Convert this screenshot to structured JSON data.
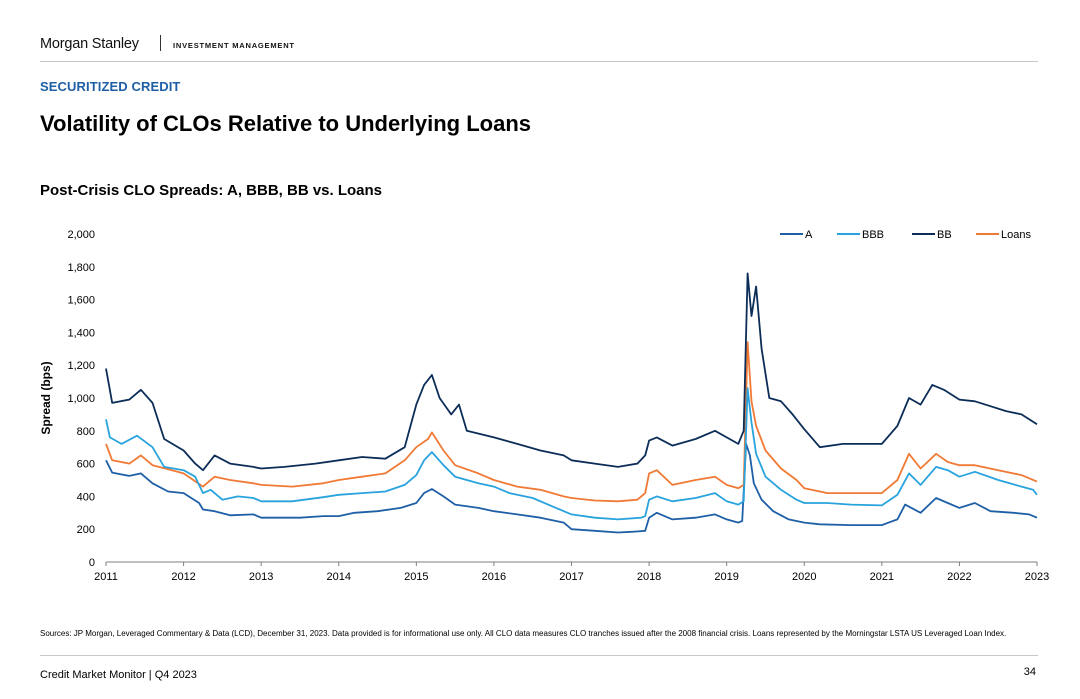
{
  "header": {
    "brand": "Morgan Stanley",
    "sub_brand": "INVESTMENT MANAGEMENT"
  },
  "section_label": "SECURITIZED CREDIT",
  "page_title": "Volatility of CLOs Relative to Underlying Loans",
  "chart_title": "Post-Crisis CLO Spreads: A, BBB, BB vs. Loans",
  "footer": {
    "sources": "Sources: JP Morgan, Leveraged Commentary & Data (LCD), December 31, 2023. Data provided is for informational use only. All CLO data measures CLO tranches issued after the 2008 financial crisis. Loans represented by the Morningstar LSTA US Leveraged Loan Index.",
    "left": "Credit Market Monitor | Q4 2023",
    "page": "34"
  },
  "chart_data": {
    "type": "line",
    "title": "Post-Crisis CLO Spreads: A, BBB, BB vs. Loans",
    "xlabel": "",
    "ylabel": "Spread (bps)",
    "xlim": [
      2011,
      2023
    ],
    "ylim": [
      0,
      2000
    ],
    "y_ticks": [
      0,
      200,
      400,
      600,
      800,
      1000,
      1200,
      1400,
      1600,
      1800,
      2000
    ],
    "y_tick_labels": [
      "0",
      "200",
      "400",
      "600",
      "800",
      "1,000",
      "1,200",
      "1,400",
      "1,600",
      "1,800",
      "2,000"
    ],
    "x_ticks": [
      2011,
      2012,
      2013,
      2014,
      2015,
      2016,
      2017,
      2018,
      2019,
      2020,
      2021,
      2022,
      2023
    ],
    "x_tick_labels": [
      "2011",
      "2012",
      "2013",
      "2014",
      "2015",
      "2016",
      "2017",
      "2018",
      "2019",
      "2020",
      "2021",
      "2022",
      "2023"
    ],
    "grid": false,
    "legend_position": "top-right",
    "series": [
      {
        "name": "A",
        "color": "#1f5fa6",
        "points": [
          [
            2011.0,
            620
          ],
          [
            2011.08,
            545
          ],
          [
            2011.3,
            525
          ],
          [
            2011.45,
            540
          ],
          [
            2011.6,
            480
          ],
          [
            2011.8,
            430
          ],
          [
            2012.0,
            420
          ],
          [
            2012.2,
            360
          ],
          [
            2012.25,
            320
          ],
          [
            2012.4,
            310
          ],
          [
            2012.6,
            285
          ],
          [
            2012.9,
            290
          ],
          [
            2013.0,
            270
          ],
          [
            2013.5,
            270
          ],
          [
            2013.8,
            280
          ],
          [
            2014.0,
            280
          ],
          [
            2014.2,
            300
          ],
          [
            2014.5,
            310
          ],
          [
            2014.8,
            330
          ],
          [
            2015.0,
            360
          ],
          [
            2015.1,
            420
          ],
          [
            2015.2,
            445
          ],
          [
            2015.35,
            400
          ],
          [
            2015.5,
            350
          ],
          [
            2015.8,
            330
          ],
          [
            2016.0,
            310
          ],
          [
            2016.3,
            290
          ],
          [
            2016.6,
            270
          ],
          [
            2016.9,
            240
          ],
          [
            2017.0,
            200
          ],
          [
            2017.3,
            190
          ],
          [
            2017.6,
            180
          ],
          [
            2017.8,
            185
          ],
          [
            2017.95,
            190
          ],
          [
            2018.0,
            270
          ],
          [
            2018.1,
            300
          ],
          [
            2018.3,
            260
          ],
          [
            2018.6,
            270
          ],
          [
            2018.85,
            290
          ],
          [
            2019.0,
            260
          ],
          [
            2019.15,
            240
          ],
          [
            2019.2,
            250
          ],
          [
            2019.25,
            720
          ],
          [
            2019.3,
            650
          ],
          [
            2019.35,
            480
          ],
          [
            2019.45,
            380
          ],
          [
            2019.6,
            310
          ],
          [
            2019.8,
            260
          ],
          [
            2020.0,
            240
          ],
          [
            2020.2,
            230
          ],
          [
            2020.6,
            225
          ],
          [
            2021.0,
            225
          ],
          [
            2021.2,
            260
          ],
          [
            2021.3,
            350
          ],
          [
            2021.5,
            300
          ],
          [
            2021.7,
            390
          ],
          [
            2021.85,
            360
          ],
          [
            2022.0,
            330
          ],
          [
            2022.2,
            360
          ],
          [
            2022.4,
            310
          ],
          [
            2022.7,
            300
          ],
          [
            2022.9,
            290
          ],
          [
            2023.0,
            270
          ]
        ]
      },
      {
        "name": "BBB",
        "color": "#29a3dd",
        "points": [
          [
            2011.0,
            870
          ],
          [
            2011.05,
            760
          ],
          [
            2011.2,
            720
          ],
          [
            2011.4,
            770
          ],
          [
            2011.6,
            700
          ],
          [
            2011.75,
            580
          ],
          [
            2012.0,
            560
          ],
          [
            2012.15,
            520
          ],
          [
            2012.25,
            420
          ],
          [
            2012.35,
            440
          ],
          [
            2012.5,
            380
          ],
          [
            2012.7,
            400
          ],
          [
            2012.9,
            390
          ],
          [
            2013.0,
            370
          ],
          [
            2013.4,
            370
          ],
          [
            2013.8,
            395
          ],
          [
            2014.0,
            410
          ],
          [
            2014.3,
            420
          ],
          [
            2014.6,
            430
          ],
          [
            2014.85,
            470
          ],
          [
            2015.0,
            530
          ],
          [
            2015.1,
            620
          ],
          [
            2015.2,
            670
          ],
          [
            2015.35,
            590
          ],
          [
            2015.5,
            520
          ],
          [
            2015.8,
            480
          ],
          [
            2016.0,
            460
          ],
          [
            2016.2,
            420
          ],
          [
            2016.5,
            390
          ],
          [
            2016.8,
            330
          ],
          [
            2017.0,
            290
          ],
          [
            2017.3,
            270
          ],
          [
            2017.6,
            260
          ],
          [
            2017.9,
            270
          ],
          [
            2017.95,
            280
          ],
          [
            2018.0,
            380
          ],
          [
            2018.1,
            400
          ],
          [
            2018.3,
            370
          ],
          [
            2018.6,
            390
          ],
          [
            2018.85,
            420
          ],
          [
            2019.0,
            370
          ],
          [
            2019.15,
            350
          ],
          [
            2019.22,
            370
          ],
          [
            2019.27,
            1060
          ],
          [
            2019.32,
            850
          ],
          [
            2019.38,
            660
          ],
          [
            2019.5,
            520
          ],
          [
            2019.7,
            440
          ],
          [
            2019.9,
            380
          ],
          [
            2020.0,
            360
          ],
          [
            2020.3,
            360
          ],
          [
            2020.6,
            350
          ],
          [
            2021.0,
            345
          ],
          [
            2021.2,
            410
          ],
          [
            2021.35,
            540
          ],
          [
            2021.5,
            470
          ],
          [
            2021.7,
            580
          ],
          [
            2021.85,
            560
          ],
          [
            2022.0,
            520
          ],
          [
            2022.2,
            550
          ],
          [
            2022.5,
            500
          ],
          [
            2022.8,
            460
          ],
          [
            2022.95,
            440
          ],
          [
            2023.0,
            410
          ]
        ]
      },
      {
        "name": "BB",
        "color": "#0b2d57",
        "points": [
          [
            2011.0,
            1180
          ],
          [
            2011.08,
            970
          ],
          [
            2011.3,
            990
          ],
          [
            2011.45,
            1050
          ],
          [
            2011.6,
            970
          ],
          [
            2011.75,
            750
          ],
          [
            2012.0,
            680
          ],
          [
            2012.15,
            600
          ],
          [
            2012.25,
            560
          ],
          [
            2012.4,
            650
          ],
          [
            2012.6,
            600
          ],
          [
            2012.9,
            580
          ],
          [
            2013.0,
            570
          ],
          [
            2013.3,
            580
          ],
          [
            2013.7,
            600
          ],
          [
            2014.0,
            620
          ],
          [
            2014.3,
            640
          ],
          [
            2014.6,
            630
          ],
          [
            2014.85,
            700
          ],
          [
            2015.0,
            960
          ],
          [
            2015.1,
            1080
          ],
          [
            2015.2,
            1140
          ],
          [
            2015.3,
            1000
          ],
          [
            2015.45,
            900
          ],
          [
            2015.55,
            960
          ],
          [
            2015.65,
            800
          ],
          [
            2016.0,
            760
          ],
          [
            2016.3,
            720
          ],
          [
            2016.6,
            680
          ],
          [
            2016.9,
            650
          ],
          [
            2017.0,
            620
          ],
          [
            2017.3,
            600
          ],
          [
            2017.6,
            580
          ],
          [
            2017.85,
            600
          ],
          [
            2017.95,
            650
          ],
          [
            2018.0,
            740
          ],
          [
            2018.1,
            760
          ],
          [
            2018.3,
            710
          ],
          [
            2018.6,
            750
          ],
          [
            2018.85,
            800
          ],
          [
            2019.0,
            760
          ],
          [
            2019.15,
            720
          ],
          [
            2019.22,
            800
          ],
          [
            2019.27,
            1760
          ],
          [
            2019.32,
            1500
          ],
          [
            2019.38,
            1680
          ],
          [
            2019.45,
            1300
          ],
          [
            2019.55,
            1000
          ],
          [
            2019.7,
            980
          ],
          [
            2019.85,
            900
          ],
          [
            2020.0,
            810
          ],
          [
            2020.2,
            700
          ],
          [
            2020.5,
            720
          ],
          [
            2021.0,
            720
          ],
          [
            2021.2,
            830
          ],
          [
            2021.35,
            1000
          ],
          [
            2021.5,
            960
          ],
          [
            2021.65,
            1080
          ],
          [
            2021.8,
            1050
          ],
          [
            2022.0,
            990
          ],
          [
            2022.2,
            980
          ],
          [
            2022.4,
            950
          ],
          [
            2022.6,
            920
          ],
          [
            2022.8,
            900
          ],
          [
            2023.0,
            840
          ]
        ]
      },
      {
        "name": "Loans",
        "color": "#f07a35",
        "points": [
          [
            2011.0,
            720
          ],
          [
            2011.08,
            620
          ],
          [
            2011.3,
            600
          ],
          [
            2011.45,
            650
          ],
          [
            2011.6,
            590
          ],
          [
            2011.85,
            560
          ],
          [
            2012.0,
            540
          ],
          [
            2012.25,
            460
          ],
          [
            2012.4,
            520
          ],
          [
            2012.6,
            500
          ],
          [
            2012.9,
            480
          ],
          [
            2013.0,
            470
          ],
          [
            2013.4,
            460
          ],
          [
            2013.8,
            480
          ],
          [
            2014.0,
            500
          ],
          [
            2014.3,
            520
          ],
          [
            2014.6,
            540
          ],
          [
            2014.85,
            620
          ],
          [
            2015.0,
            700
          ],
          [
            2015.15,
            750
          ],
          [
            2015.2,
            790
          ],
          [
            2015.35,
            680
          ],
          [
            2015.5,
            590
          ],
          [
            2015.8,
            540
          ],
          [
            2016.0,
            500
          ],
          [
            2016.3,
            460
          ],
          [
            2016.6,
            440
          ],
          [
            2016.9,
            400
          ],
          [
            2017.0,
            390
          ],
          [
            2017.3,
            375
          ],
          [
            2017.6,
            370
          ],
          [
            2017.85,
            380
          ],
          [
            2017.95,
            420
          ],
          [
            2018.0,
            540
          ],
          [
            2018.1,
            560
          ],
          [
            2018.3,
            470
          ],
          [
            2018.6,
            500
          ],
          [
            2018.85,
            520
          ],
          [
            2019.0,
            470
          ],
          [
            2019.15,
            450
          ],
          [
            2019.22,
            470
          ],
          [
            2019.27,
            1340
          ],
          [
            2019.32,
            980
          ],
          [
            2019.38,
            830
          ],
          [
            2019.5,
            680
          ],
          [
            2019.7,
            570
          ],
          [
            2019.9,
            500
          ],
          [
            2020.0,
            450
          ],
          [
            2020.3,
            420
          ],
          [
            2020.6,
            420
          ],
          [
            2021.0,
            420
          ],
          [
            2021.2,
            500
          ],
          [
            2021.35,
            660
          ],
          [
            2021.5,
            570
          ],
          [
            2021.7,
            660
          ],
          [
            2021.85,
            610
          ],
          [
            2022.0,
            590
          ],
          [
            2022.2,
            590
          ],
          [
            2022.5,
            560
          ],
          [
            2022.8,
            530
          ],
          [
            2023.0,
            490
          ]
        ]
      }
    ]
  }
}
